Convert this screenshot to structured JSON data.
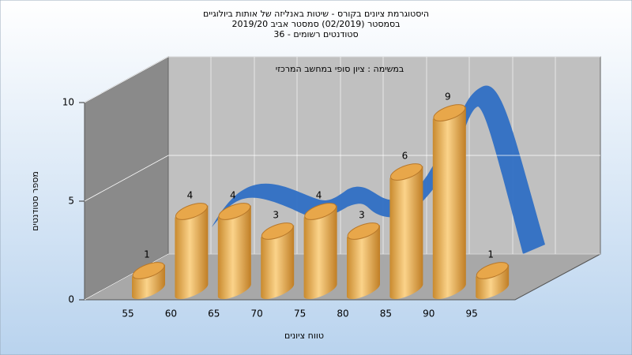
{
  "chart_data": {
    "type": "bar3d",
    "title": [
      "היסטוגרמת ציונים בקורס - שיטות באנליזה של אותות ביולוגיים",
      "בסמסטר (02/2019) סמסטר אביב 2019/20",
      "סטודנטים רשומים - 36"
    ],
    "annotation": "במשימה : ציון סופי במחשב המרכזי",
    "ylabel": "מספר סטודנטים",
    "xlabel": "טווח ציונים",
    "categories": [
      "55",
      "60",
      "65",
      "70",
      "75",
      "80",
      "85",
      "90",
      "95"
    ],
    "values": [
      1,
      4,
      4,
      3,
      4,
      3,
      6,
      9,
      1
    ],
    "color": "#e8a74a",
    "ylim": [
      0,
      10
    ],
    "yticks": [
      0,
      5,
      10
    ],
    "grid": true
  }
}
